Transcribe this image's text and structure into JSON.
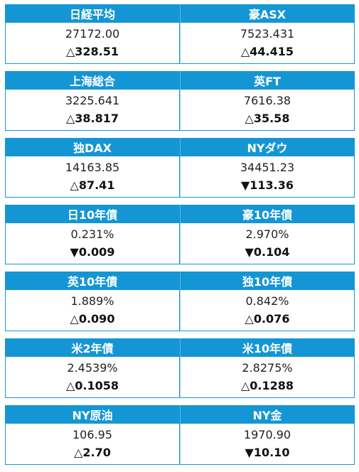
{
  "blocks": [
    {
      "left": {
        "name": "日経平均",
        "value": "27172.00",
        "change": "△328.51"
      },
      "right": {
        "name": "豪ASX",
        "value": "7523.431",
        "change": "△44.415"
      }
    },
    {
      "left": {
        "name": "上海総合",
        "value": "3225.641",
        "change": "△38.817"
      },
      "right": {
        "name": "英FT",
        "value": "7616.38",
        "change": "△35.58"
      }
    },
    {
      "left": {
        "name": "独DAX",
        "value": "14163.85",
        "change": "△87.41"
      },
      "right": {
        "name": "NYダウ",
        "value": "34451.23",
        "change": "▼113.36"
      }
    },
    {
      "left": {
        "name": "日10年債",
        "value": "0.231%",
        "change": "▼0.009"
      },
      "right": {
        "name": "豪10年債",
        "value": "2.970%",
        "change": "▼0.104"
      }
    },
    {
      "left": {
        "name": "英10年債",
        "value": "1.889%",
        "change": "△0.090"
      },
      "right": {
        "name": "独10年債",
        "value": "0.842%",
        "change": "△0.076"
      }
    },
    {
      "left": {
        "name": "米2年債",
        "value": "2.4539%",
        "change": "△0.1058"
      },
      "right": {
        "name": "米10年債",
        "value": "2.8275%",
        "change": "△0.1288"
      }
    },
    {
      "left": {
        "name": "NY原油",
        "value": "106.95",
        "change": "△2.70"
      },
      "right": {
        "name": "NY金",
        "value": "1970.90",
        "change": "▼10.10"
      }
    }
  ],
  "colors": {
    "header_bg": "#1596d4",
    "header_text": "#ffffff",
    "border": "#1596d4"
  }
}
